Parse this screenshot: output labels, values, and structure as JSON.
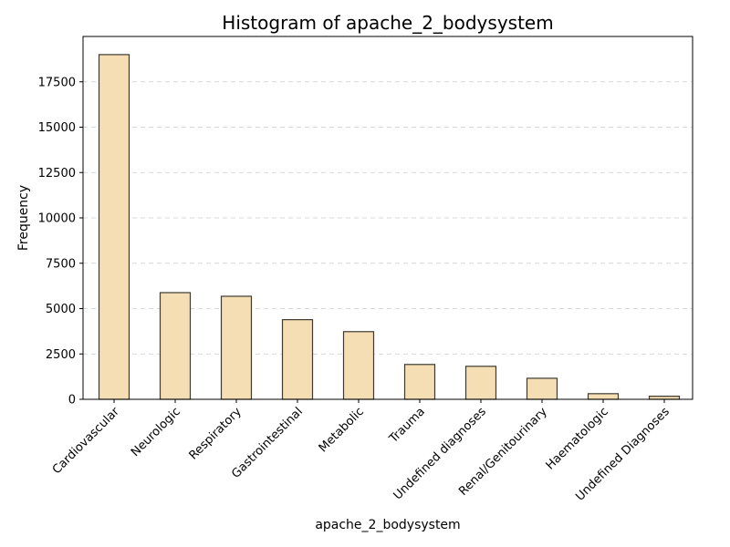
{
  "chart_data": {
    "type": "bar",
    "title": "Histogram of apache_2_bodysystem",
    "xlabel": "apache_2_bodysystem",
    "ylabel": "Frequency",
    "categories": [
      "Cardiovascular",
      "Neurologic",
      "Respiratory",
      "Gastrointestinal",
      "Metabolic",
      "Trauma",
      "Undefined diagnoses",
      "Renal/Genitourinary",
      "Haematologic",
      "Undefined Diagnoses"
    ],
    "values": [
      19000,
      5880,
      5680,
      4390,
      3730,
      1920,
      1820,
      1160,
      310,
      170
    ],
    "ylim": [
      0,
      20000
    ],
    "yticks": [
      0,
      2500,
      5000,
      7500,
      10000,
      12500,
      15000,
      17500
    ],
    "grid": "y-dashed",
    "legend": "none",
    "bar_color": "#f5deb3",
    "edge_color": "#3d3a32"
  }
}
